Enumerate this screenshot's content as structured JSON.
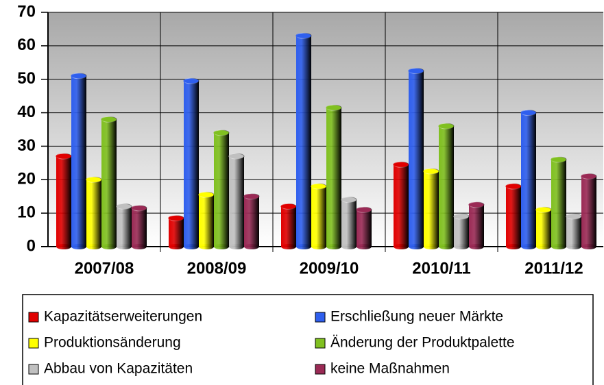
{
  "chart_data": {
    "type": "bar",
    "categories": [
      "2007/08",
      "2008/09",
      "2009/10",
      "2010/11",
      "2011/12"
    ],
    "series": [
      {
        "name": "Kapazitätserweiterungen",
        "color": "#e00000",
        "values": [
          27,
          8.5,
          12,
          24.5,
          18
        ]
      },
      {
        "name": "Erschließung neuer Märkte",
        "color": "#2f5fee",
        "values": [
          51,
          49.5,
          63,
          52.5,
          40
        ]
      },
      {
        "name": "Produktionsänderung",
        "color": "#ffff00",
        "values": [
          20,
          15.5,
          18,
          22.5,
          11
        ]
      },
      {
        "name": "Änderung der Produktpalette",
        "color": "#80c020",
        "values": [
          38,
          34,
          41.5,
          36,
          26
        ]
      },
      {
        "name": "Abbau von Kapazitäten",
        "color": "#c0c0c0",
        "values": [
          12,
          27,
          14,
          9,
          9
        ]
      },
      {
        "name": "keine Maßnahmen",
        "color": "#9a2a55",
        "values": [
          11.5,
          15,
          11,
          12.5,
          21
        ]
      }
    ],
    "ylim": [
      0,
      70
    ],
    "yticks": [
      0,
      10,
      20,
      30,
      40,
      50,
      60,
      70
    ],
    "grid": true,
    "legend": "bottom"
  }
}
